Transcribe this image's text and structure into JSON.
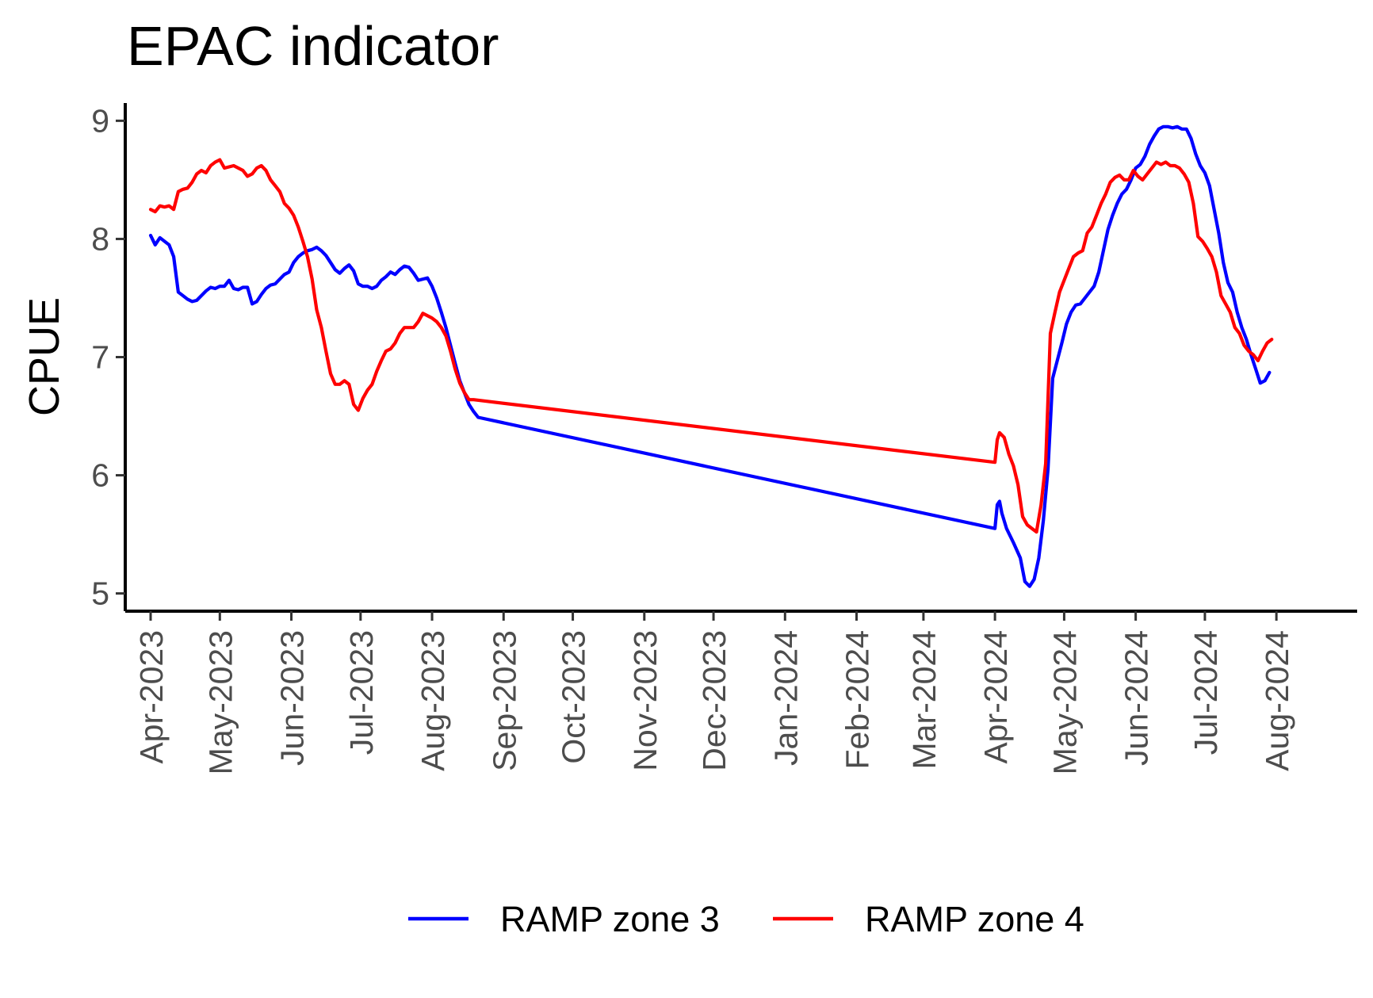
{
  "chart_data": {
    "type": "line",
    "title": "EPAC indicator",
    "xlabel": "",
    "ylabel": "CPUE",
    "ylim": [
      4.85,
      9.15
    ],
    "yticks": [
      5,
      6,
      7,
      8,
      9
    ],
    "xlim": [
      "2023-03-21",
      "2024-09-05"
    ],
    "xticks": [
      "2023-04-01",
      "2023-05-01",
      "2023-06-01",
      "2023-07-01",
      "2023-08-01",
      "2023-09-01",
      "2023-10-01",
      "2023-11-01",
      "2023-12-01",
      "2024-01-01",
      "2024-02-01",
      "2024-03-01",
      "2024-04-01",
      "2024-05-01",
      "2024-06-01",
      "2024-07-01",
      "2024-08-01"
    ],
    "xtick_labels": [
      "Apr-2023",
      "May-2023",
      "Jun-2023",
      "Jul-2023",
      "Aug-2023",
      "Sep-2023",
      "Oct-2023",
      "Nov-2023",
      "Dec-2023",
      "Jan-2024",
      "Feb-2024",
      "Mar-2024",
      "Apr-2024",
      "May-2024",
      "Jun-2024",
      "Jul-2024",
      "Aug-2024"
    ],
    "grid": false,
    "legend": "bottom",
    "series": [
      {
        "name": "RAMP zone 3",
        "color": "#0000ff",
        "points": [
          [
            "2023-04-01",
            8.03
          ],
          [
            "2023-04-03",
            7.95
          ],
          [
            "2023-04-05",
            8.01
          ],
          [
            "2023-04-07",
            7.98
          ],
          [
            "2023-04-09",
            7.95
          ],
          [
            "2023-04-11",
            7.85
          ],
          [
            "2023-04-13",
            7.55
          ],
          [
            "2023-04-15",
            7.52
          ],
          [
            "2023-04-17",
            7.49
          ],
          [
            "2023-04-19",
            7.47
          ],
          [
            "2023-04-21",
            7.48
          ],
          [
            "2023-04-23",
            7.52
          ],
          [
            "2023-04-25",
            7.56
          ],
          [
            "2023-04-27",
            7.59
          ],
          [
            "2023-04-29",
            7.58
          ],
          [
            "2023-05-01",
            7.6
          ],
          [
            "2023-05-03",
            7.6
          ],
          [
            "2023-05-05",
            7.65
          ],
          [
            "2023-05-07",
            7.58
          ],
          [
            "2023-05-09",
            7.57
          ],
          [
            "2023-05-11",
            7.59
          ],
          [
            "2023-05-13",
            7.59
          ],
          [
            "2023-05-15",
            7.45
          ],
          [
            "2023-05-17",
            7.47
          ],
          [
            "2023-05-19",
            7.53
          ],
          [
            "2023-05-21",
            7.58
          ],
          [
            "2023-05-23",
            7.61
          ],
          [
            "2023-05-25",
            7.62
          ],
          [
            "2023-05-27",
            7.66
          ],
          [
            "2023-05-29",
            7.7
          ],
          [
            "2023-05-31",
            7.72
          ],
          [
            "2023-06-02",
            7.8
          ],
          [
            "2023-06-04",
            7.85
          ],
          [
            "2023-06-06",
            7.88
          ],
          [
            "2023-06-08",
            7.9
          ],
          [
            "2023-06-10",
            7.91
          ],
          [
            "2023-06-12",
            7.93
          ],
          [
            "2023-06-14",
            7.9
          ],
          [
            "2023-06-16",
            7.86
          ],
          [
            "2023-06-18",
            7.8
          ],
          [
            "2023-06-20",
            7.74
          ],
          [
            "2023-06-22",
            7.71
          ],
          [
            "2023-06-24",
            7.75
          ],
          [
            "2023-06-26",
            7.78
          ],
          [
            "2023-06-28",
            7.73
          ],
          [
            "2023-06-30",
            7.62
          ],
          [
            "2023-07-02",
            7.6
          ],
          [
            "2023-07-04",
            7.6
          ],
          [
            "2023-07-06",
            7.58
          ],
          [
            "2023-07-08",
            7.6
          ],
          [
            "2023-07-10",
            7.65
          ],
          [
            "2023-07-12",
            7.68
          ],
          [
            "2023-07-14",
            7.72
          ],
          [
            "2023-07-16",
            7.7
          ],
          [
            "2023-07-18",
            7.74
          ],
          [
            "2023-07-20",
            7.77
          ],
          [
            "2023-07-22",
            7.76
          ],
          [
            "2023-07-24",
            7.71
          ],
          [
            "2023-07-26",
            7.65
          ],
          [
            "2023-07-28",
            7.66
          ],
          [
            "2023-07-30",
            7.67
          ],
          [
            "2023-08-01",
            7.6
          ],
          [
            "2023-08-03",
            7.5
          ],
          [
            "2023-08-05",
            7.38
          ],
          [
            "2023-08-07",
            7.25
          ],
          [
            "2023-08-09",
            7.1
          ],
          [
            "2023-08-11",
            6.95
          ],
          [
            "2023-08-13",
            6.8
          ],
          [
            "2023-08-15",
            6.7
          ],
          [
            "2023-08-17",
            6.6
          ],
          [
            "2023-08-19",
            6.54
          ],
          [
            "2023-08-21",
            6.49
          ],
          [
            "2024-04-01",
            5.55
          ],
          [
            "2024-04-02",
            5.75
          ],
          [
            "2024-04-03",
            5.78
          ],
          [
            "2024-04-04",
            5.68
          ],
          [
            "2024-04-06",
            5.55
          ],
          [
            "2024-04-09",
            5.43
          ],
          [
            "2024-04-12",
            5.3
          ],
          [
            "2024-04-14",
            5.1
          ],
          [
            "2024-04-16",
            5.06
          ],
          [
            "2024-04-18",
            5.12
          ],
          [
            "2024-04-20",
            5.3
          ],
          [
            "2024-04-22",
            5.62
          ],
          [
            "2024-04-24",
            6.05
          ],
          [
            "2024-04-26",
            6.82
          ],
          [
            "2024-04-28",
            6.97
          ],
          [
            "2024-04-30",
            7.12
          ],
          [
            "2024-05-02",
            7.28
          ],
          [
            "2024-05-04",
            7.38
          ],
          [
            "2024-05-06",
            7.44
          ],
          [
            "2024-05-08",
            7.45
          ],
          [
            "2024-05-10",
            7.5
          ],
          [
            "2024-05-12",
            7.55
          ],
          [
            "2024-05-14",
            7.6
          ],
          [
            "2024-05-16",
            7.72
          ],
          [
            "2024-05-18",
            7.9
          ],
          [
            "2024-05-20",
            8.08
          ],
          [
            "2024-05-22",
            8.2
          ],
          [
            "2024-05-24",
            8.3
          ],
          [
            "2024-05-26",
            8.38
          ],
          [
            "2024-05-28",
            8.42
          ],
          [
            "2024-05-30",
            8.5
          ],
          [
            "2024-06-01",
            8.6
          ],
          [
            "2024-06-03",
            8.63
          ],
          [
            "2024-06-05",
            8.7
          ],
          [
            "2024-06-07",
            8.8
          ],
          [
            "2024-06-09",
            8.87
          ],
          [
            "2024-06-11",
            8.93
          ],
          [
            "2024-06-13",
            8.95
          ],
          [
            "2024-06-15",
            8.95
          ],
          [
            "2024-06-17",
            8.94
          ],
          [
            "2024-06-19",
            8.95
          ],
          [
            "2024-06-21",
            8.93
          ],
          [
            "2024-06-23",
            8.93
          ],
          [
            "2024-06-25",
            8.85
          ],
          [
            "2024-06-27",
            8.72
          ],
          [
            "2024-06-29",
            8.62
          ],
          [
            "2024-07-01",
            8.56
          ],
          [
            "2024-07-03",
            8.45
          ],
          [
            "2024-07-05",
            8.25
          ],
          [
            "2024-07-07",
            8.05
          ],
          [
            "2024-07-09",
            7.8
          ],
          [
            "2024-07-11",
            7.63
          ],
          [
            "2024-07-13",
            7.55
          ],
          [
            "2024-07-15",
            7.38
          ],
          [
            "2024-07-17",
            7.25
          ],
          [
            "2024-07-19",
            7.15
          ],
          [
            "2024-07-21",
            7.02
          ],
          [
            "2024-07-23",
            6.9
          ],
          [
            "2024-07-25",
            6.78
          ],
          [
            "2024-07-27",
            6.8
          ],
          [
            "2024-07-29",
            6.87
          ]
        ]
      },
      {
        "name": "RAMP zone 4",
        "color": "#ff0000",
        "points": [
          [
            "2023-04-01",
            8.25
          ],
          [
            "2023-04-03",
            8.23
          ],
          [
            "2023-04-05",
            8.28
          ],
          [
            "2023-04-07",
            8.27
          ],
          [
            "2023-04-09",
            8.28
          ],
          [
            "2023-04-11",
            8.25
          ],
          [
            "2023-04-13",
            8.4
          ],
          [
            "2023-04-15",
            8.42
          ],
          [
            "2023-04-17",
            8.43
          ],
          [
            "2023-04-19",
            8.48
          ],
          [
            "2023-04-21",
            8.55
          ],
          [
            "2023-04-23",
            8.58
          ],
          [
            "2023-04-25",
            8.56
          ],
          [
            "2023-04-27",
            8.62
          ],
          [
            "2023-04-29",
            8.65
          ],
          [
            "2023-05-01",
            8.67
          ],
          [
            "2023-05-03",
            8.6
          ],
          [
            "2023-05-05",
            8.61
          ],
          [
            "2023-05-07",
            8.62
          ],
          [
            "2023-05-09",
            8.6
          ],
          [
            "2023-05-11",
            8.58
          ],
          [
            "2023-05-13",
            8.53
          ],
          [
            "2023-05-15",
            8.55
          ],
          [
            "2023-05-17",
            8.6
          ],
          [
            "2023-05-19",
            8.62
          ],
          [
            "2023-05-21",
            8.58
          ],
          [
            "2023-05-23",
            8.5
          ],
          [
            "2023-05-25",
            8.45
          ],
          [
            "2023-05-27",
            8.4
          ],
          [
            "2023-05-29",
            8.3
          ],
          [
            "2023-05-31",
            8.26
          ],
          [
            "2023-06-02",
            8.2
          ],
          [
            "2023-06-04",
            8.1
          ],
          [
            "2023-06-06",
            7.98
          ],
          [
            "2023-06-08",
            7.85
          ],
          [
            "2023-06-10",
            7.66
          ],
          [
            "2023-06-12",
            7.4
          ],
          [
            "2023-06-14",
            7.25
          ],
          [
            "2023-06-16",
            7.05
          ],
          [
            "2023-06-18",
            6.86
          ],
          [
            "2023-06-20",
            6.77
          ],
          [
            "2023-06-22",
            6.77
          ],
          [
            "2023-06-24",
            6.8
          ],
          [
            "2023-06-26",
            6.77
          ],
          [
            "2023-06-28",
            6.6
          ],
          [
            "2023-06-30",
            6.55
          ],
          [
            "2023-07-02",
            6.65
          ],
          [
            "2023-07-04",
            6.72
          ],
          [
            "2023-07-06",
            6.77
          ],
          [
            "2023-07-08",
            6.88
          ],
          [
            "2023-07-10",
            6.97
          ],
          [
            "2023-07-12",
            7.05
          ],
          [
            "2023-07-14",
            7.07
          ],
          [
            "2023-07-16",
            7.12
          ],
          [
            "2023-07-18",
            7.2
          ],
          [
            "2023-07-20",
            7.25
          ],
          [
            "2023-07-22",
            7.25
          ],
          [
            "2023-07-24",
            7.25
          ],
          [
            "2023-07-26",
            7.3
          ],
          [
            "2023-07-28",
            7.37
          ],
          [
            "2023-07-30",
            7.35
          ],
          [
            "2023-08-01",
            7.33
          ],
          [
            "2023-08-03",
            7.3
          ],
          [
            "2023-08-05",
            7.25
          ],
          [
            "2023-08-07",
            7.18
          ],
          [
            "2023-08-09",
            7.05
          ],
          [
            "2023-08-11",
            6.9
          ],
          [
            "2023-08-13",
            6.78
          ],
          [
            "2023-08-15",
            6.7
          ],
          [
            "2023-08-17",
            6.64
          ],
          [
            "2023-08-19",
            6.64
          ],
          [
            "2024-04-01",
            6.11
          ],
          [
            "2024-04-02",
            6.3
          ],
          [
            "2024-04-03",
            6.36
          ],
          [
            "2024-04-05",
            6.32
          ],
          [
            "2024-04-07",
            6.18
          ],
          [
            "2024-04-09",
            6.08
          ],
          [
            "2024-04-11",
            5.92
          ],
          [
            "2024-04-13",
            5.65
          ],
          [
            "2024-04-15",
            5.58
          ],
          [
            "2024-04-17",
            5.55
          ],
          [
            "2024-04-19",
            5.52
          ],
          [
            "2024-04-21",
            5.75
          ],
          [
            "2024-04-23",
            6.1
          ],
          [
            "2024-04-25",
            7.2
          ],
          [
            "2024-04-27",
            7.38
          ],
          [
            "2024-04-29",
            7.55
          ],
          [
            "2024-05-01",
            7.65
          ],
          [
            "2024-05-03",
            7.75
          ],
          [
            "2024-05-05",
            7.85
          ],
          [
            "2024-05-07",
            7.88
          ],
          [
            "2024-05-09",
            7.9
          ],
          [
            "2024-05-11",
            8.05
          ],
          [
            "2024-05-13",
            8.1
          ],
          [
            "2024-05-15",
            8.2
          ],
          [
            "2024-05-17",
            8.3
          ],
          [
            "2024-05-19",
            8.38
          ],
          [
            "2024-05-21",
            8.48
          ],
          [
            "2024-05-23",
            8.52
          ],
          [
            "2024-05-25",
            8.54
          ],
          [
            "2024-05-27",
            8.5
          ],
          [
            "2024-05-29",
            8.5
          ],
          [
            "2024-05-31",
            8.58
          ],
          [
            "2024-06-02",
            8.53
          ],
          [
            "2024-06-04",
            8.5
          ],
          [
            "2024-06-06",
            8.55
          ],
          [
            "2024-06-08",
            8.6
          ],
          [
            "2024-06-10",
            8.65
          ],
          [
            "2024-06-12",
            8.63
          ],
          [
            "2024-06-14",
            8.65
          ],
          [
            "2024-06-16",
            8.62
          ],
          [
            "2024-06-18",
            8.62
          ],
          [
            "2024-06-20",
            8.6
          ],
          [
            "2024-06-22",
            8.55
          ],
          [
            "2024-06-24",
            8.48
          ],
          [
            "2024-06-26",
            8.3
          ],
          [
            "2024-06-28",
            8.02
          ],
          [
            "2024-06-30",
            7.98
          ],
          [
            "2024-07-02",
            7.92
          ],
          [
            "2024-07-04",
            7.85
          ],
          [
            "2024-07-06",
            7.72
          ],
          [
            "2024-07-08",
            7.52
          ],
          [
            "2024-07-10",
            7.45
          ],
          [
            "2024-07-12",
            7.38
          ],
          [
            "2024-07-14",
            7.25
          ],
          [
            "2024-07-16",
            7.2
          ],
          [
            "2024-07-18",
            7.1
          ],
          [
            "2024-07-20",
            7.05
          ],
          [
            "2024-07-22",
            7.02
          ],
          [
            "2024-07-24",
            6.97
          ],
          [
            "2024-07-26",
            7.05
          ],
          [
            "2024-07-28",
            7.12
          ],
          [
            "2024-07-30",
            7.15
          ]
        ]
      }
    ]
  }
}
